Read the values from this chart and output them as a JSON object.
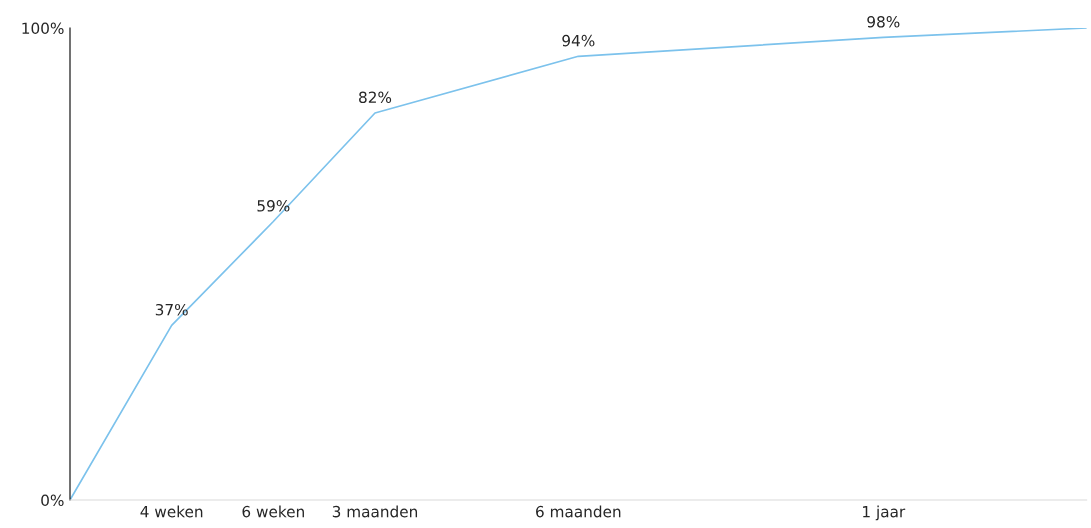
{
  "chart_data": {
    "type": "line",
    "categories": [
      null,
      "4 weken",
      "6 weken",
      "3 maanden",
      null,
      "6 maanden",
      null,
      null,
      "1 jaar",
      null,
      null
    ],
    "series": [
      {
        "color": "#7cc2ec",
        "values": [
          0,
          37,
          59,
          82,
          null,
          94,
          null,
          null,
          98,
          null,
          100
        ],
        "value_labels": [
          null,
          "37%",
          "59%",
          "82%",
          null,
          "94%",
          null,
          null,
          "98%",
          null,
          null
        ]
      }
    ],
    "ylim": [
      0,
      100
    ],
    "yticks": [
      {
        "value": 0,
        "label": "0%"
      },
      {
        "value": 100,
        "label": "100%"
      }
    ],
    "grid": false,
    "legend": false,
    "marker": "none",
    "line_style": "solid"
  }
}
